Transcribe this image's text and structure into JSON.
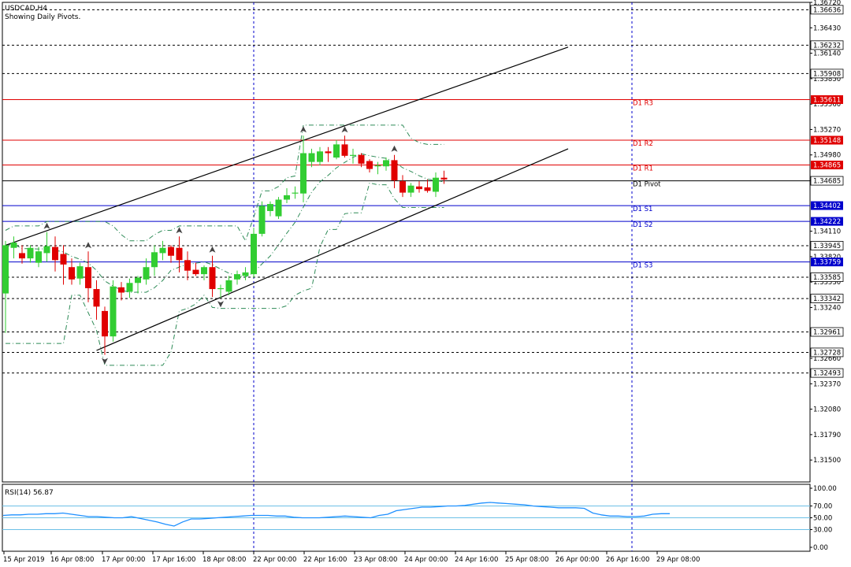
{
  "header": {
    "symbol": "USDCAD,H4",
    "subtitle": "Showing Daily Pivots."
  },
  "chart_data": {
    "type": "candlestick",
    "symbol": "USDCAD",
    "timeframe": "H4",
    "ylim": [
      1.3125,
      1.3672
    ],
    "yticks": [
      "1.36720",
      "1.36430",
      "1.36140",
      "1.35850",
      "1.35560",
      "1.35270",
      "1.34980",
      "1.34690",
      "1.34110",
      "1.33820",
      "1.33530",
      "1.33240",
      "1.32950",
      "1.32660",
      "1.32370",
      "1.32080",
      "1.31790",
      "1.31500"
    ],
    "x_labels": [
      "15 Apr 2019",
      "16 Apr 08:00",
      "17 Apr 00:00",
      "17 Apr 16:00",
      "18 Apr 08:00",
      "22 Apr 00:00",
      "22 Apr 16:00",
      "23 Apr 08:00",
      "24 Apr 00:00",
      "24 Apr 16:00",
      "25 Apr 08:00",
      "26 Apr 00:00",
      "26 Apr 16:00",
      "29 Apr 08:00"
    ],
    "candles": [
      {
        "o": 1.334,
        "h": 1.34,
        "l": 1.3295,
        "c": 1.3395
      },
      {
        "o": 1.3392,
        "h": 1.3405,
        "l": 1.338,
        "c": 1.3398
      },
      {
        "o": 1.3386,
        "h": 1.3395,
        "l": 1.3374,
        "c": 1.338
      },
      {
        "o": 1.338,
        "h": 1.3395,
        "l": 1.3375,
        "c": 1.3392
      },
      {
        "o": 1.3375,
        "h": 1.3393,
        "l": 1.337,
        "c": 1.3388
      },
      {
        "o": 1.3386,
        "h": 1.341,
        "l": 1.3376,
        "c": 1.3394
      },
      {
        "o": 1.3393,
        "h": 1.3405,
        "l": 1.3365,
        "c": 1.3378
      },
      {
        "o": 1.3385,
        "h": 1.3395,
        "l": 1.335,
        "c": 1.3373
      },
      {
        "o": 1.337,
        "h": 1.338,
        "l": 1.335,
        "c": 1.3356
      },
      {
        "o": 1.3357,
        "h": 1.3375,
        "l": 1.335,
        "c": 1.3371
      },
      {
        "o": 1.337,
        "h": 1.3388,
        "l": 1.333,
        "c": 1.3346
      },
      {
        "o": 1.3345,
        "h": 1.3355,
        "l": 1.331,
        "c": 1.3325
      },
      {
        "o": 1.332,
        "h": 1.3325,
        "l": 1.327,
        "c": 1.3291
      },
      {
        "o": 1.3291,
        "h": 1.3355,
        "l": 1.3285,
        "c": 1.3348
      },
      {
        "o": 1.3347,
        "h": 1.3353,
        "l": 1.3332,
        "c": 1.3341
      },
      {
        "o": 1.3342,
        "h": 1.3357,
        "l": 1.3335,
        "c": 1.3352
      },
      {
        "o": 1.3352,
        "h": 1.336,
        "l": 1.334,
        "c": 1.3358
      },
      {
        "o": 1.3356,
        "h": 1.338,
        "l": 1.335,
        "c": 1.337
      },
      {
        "o": 1.337,
        "h": 1.3395,
        "l": 1.336,
        "c": 1.3387
      },
      {
        "o": 1.3386,
        "h": 1.34,
        "l": 1.3378,
        "c": 1.3392
      },
      {
        "o": 1.3393,
        "h": 1.3395,
        "l": 1.3375,
        "c": 1.3383
      },
      {
        "o": 1.3392,
        "h": 1.3405,
        "l": 1.3364,
        "c": 1.3378
      },
      {
        "o": 1.3378,
        "h": 1.3388,
        "l": 1.3355,
        "c": 1.3366
      },
      {
        "o": 1.3367,
        "h": 1.3375,
        "l": 1.336,
        "c": 1.3362
      },
      {
        "o": 1.3362,
        "h": 1.3372,
        "l": 1.3355,
        "c": 1.337
      },
      {
        "o": 1.337,
        "h": 1.3383,
        "l": 1.3336,
        "c": 1.3345
      },
      {
        "o": 1.3345,
        "h": 1.335,
        "l": 1.3335,
        "c": 1.3346
      },
      {
        "o": 1.3342,
        "h": 1.336,
        "l": 1.3338,
        "c": 1.3355
      },
      {
        "o": 1.3356,
        "h": 1.3366,
        "l": 1.335,
        "c": 1.3362
      },
      {
        "o": 1.336,
        "h": 1.337,
        "l": 1.3355,
        "c": 1.3364
      },
      {
        "o": 1.3362,
        "h": 1.3415,
        "l": 1.3358,
        "c": 1.3408
      },
      {
        "o": 1.3408,
        "h": 1.3445,
        "l": 1.3405,
        "c": 1.344
      },
      {
        "o": 1.3434,
        "h": 1.3445,
        "l": 1.3428,
        "c": 1.3442
      },
      {
        "o": 1.3428,
        "h": 1.345,
        "l": 1.3425,
        "c": 1.3447
      },
      {
        "o": 1.3447,
        "h": 1.346,
        "l": 1.3443,
        "c": 1.3452
      },
      {
        "o": 1.3454,
        "h": 1.3462,
        "l": 1.3448,
        "c": 1.3455
      },
      {
        "o": 1.3454,
        "h": 1.352,
        "l": 1.3444,
        "c": 1.35
      },
      {
        "o": 1.349,
        "h": 1.3505,
        "l": 1.3484,
        "c": 1.35
      },
      {
        "o": 1.349,
        "h": 1.3507,
        "l": 1.3486,
        "c": 1.3502
      },
      {
        "o": 1.3502,
        "h": 1.3507,
        "l": 1.349,
        "c": 1.35
      },
      {
        "o": 1.3495,
        "h": 1.3515,
        "l": 1.3493,
        "c": 1.351
      },
      {
        "o": 1.351,
        "h": 1.352,
        "l": 1.3495,
        "c": 1.3497
      },
      {
        "o": 1.3497,
        "h": 1.3505,
        "l": 1.3488,
        "c": 1.3498
      },
      {
        "o": 1.3498,
        "h": 1.35,
        "l": 1.3484,
        "c": 1.3488
      },
      {
        "o": 1.3491,
        "h": 1.3493,
        "l": 1.3478,
        "c": 1.3482
      },
      {
        "o": 1.3485,
        "h": 1.349,
        "l": 1.3476,
        "c": 1.3486
      },
      {
        "o": 1.3485,
        "h": 1.3495,
        "l": 1.348,
        "c": 1.3492
      },
      {
        "o": 1.3492,
        "h": 1.3498,
        "l": 1.346,
        "c": 1.3469
      },
      {
        "o": 1.3468,
        "h": 1.3475,
        "l": 1.345,
        "c": 1.3455
      },
      {
        "o": 1.3455,
        "h": 1.3466,
        "l": 1.345,
        "c": 1.3463
      },
      {
        "o": 1.3462,
        "h": 1.3468,
        "l": 1.3455,
        "c": 1.3459
      },
      {
        "o": 1.3461,
        "h": 1.347,
        "l": 1.3455,
        "c": 1.3457
      },
      {
        "o": 1.3456,
        "h": 1.3478,
        "l": 1.345,
        "c": 1.3472
      },
      {
        "o": 1.3472,
        "h": 1.348,
        "l": 1.3465,
        "c": 1.347
      }
    ],
    "pivot_levels": [
      {
        "label": "D1 R3",
        "value": 1.35611,
        "tag": "1.35611",
        "color": "#e00000"
      },
      {
        "label": "D1 R2",
        "value": 1.35148,
        "tag": "1.35148",
        "color": "#e00000"
      },
      {
        "label": "D1 R1",
        "value": 1.34865,
        "tag": "1.34865",
        "color": "#e00000"
      },
      {
        "label": "D1 Pivot",
        "value": 1.34685,
        "tag": "1.34685",
        "color": "#000000"
      },
      {
        "label": "D1 S1",
        "value": 1.34402,
        "tag": "1.34402",
        "color": "#0000cc"
      },
      {
        "label": "D1 S2",
        "value": 1.34222,
        "tag": "1.34222",
        "color": "#0000cc"
      },
      {
        "label": "D1 S3",
        "value": 1.33759,
        "tag": "1.33759",
        "color": "#0000cc"
      }
    ],
    "dashed_levels": [
      {
        "value": 1.36636,
        "tag": "1.36636"
      },
      {
        "value": 1.36232,
        "tag": "1.36232"
      },
      {
        "value": 1.35908,
        "tag": "1.35908"
      },
      {
        "value": 1.33945,
        "tag": "1.33945"
      },
      {
        "value": 1.33585,
        "tag": "1.33585"
      },
      {
        "value": 1.33342,
        "tag": "1.33342"
      },
      {
        "value": 1.32961,
        "tag": "1.32961"
      },
      {
        "value": 1.32728,
        "tag": "1.32728"
      },
      {
        "value": 1.32493,
        "tag": "1.32493"
      }
    ],
    "channel_lines": [
      {
        "from": {
          "bar": 0,
          "price": 1.3395
        },
        "to": {
          "bar": 68,
          "price": 1.3621
        }
      },
      {
        "from": {
          "bar": 11,
          "price": 1.3275
        },
        "to": {
          "bar": 68,
          "price": 1.3505
        }
      }
    ],
    "rsi": {
      "label": "RSI(14) 56.87",
      "ylim": [
        0,
        100
      ],
      "levels": [
        "100.00",
        "70.00",
        "50.00",
        "30.00",
        "0.00"
      ],
      "values": [
        54,
        55,
        55,
        56,
        56,
        57,
        57,
        58,
        56,
        54,
        52,
        52,
        51,
        50,
        50,
        52,
        49,
        46,
        43,
        39,
        36,
        43,
        48,
        48,
        49,
        50,
        51,
        52,
        53,
        54,
        54,
        54,
        53,
        53,
        51,
        50,
        50,
        50,
        51,
        52,
        53,
        52,
        51,
        50,
        54,
        56,
        62,
        64,
        66,
        68,
        68,
        69,
        70,
        70,
        71,
        73,
        75,
        76,
        75,
        74,
        73,
        72,
        70,
        69,
        68,
        67,
        67,
        67,
        66,
        58,
        55,
        53,
        53,
        52,
        52,
        53,
        56,
        57,
        57
      ]
    }
  }
}
